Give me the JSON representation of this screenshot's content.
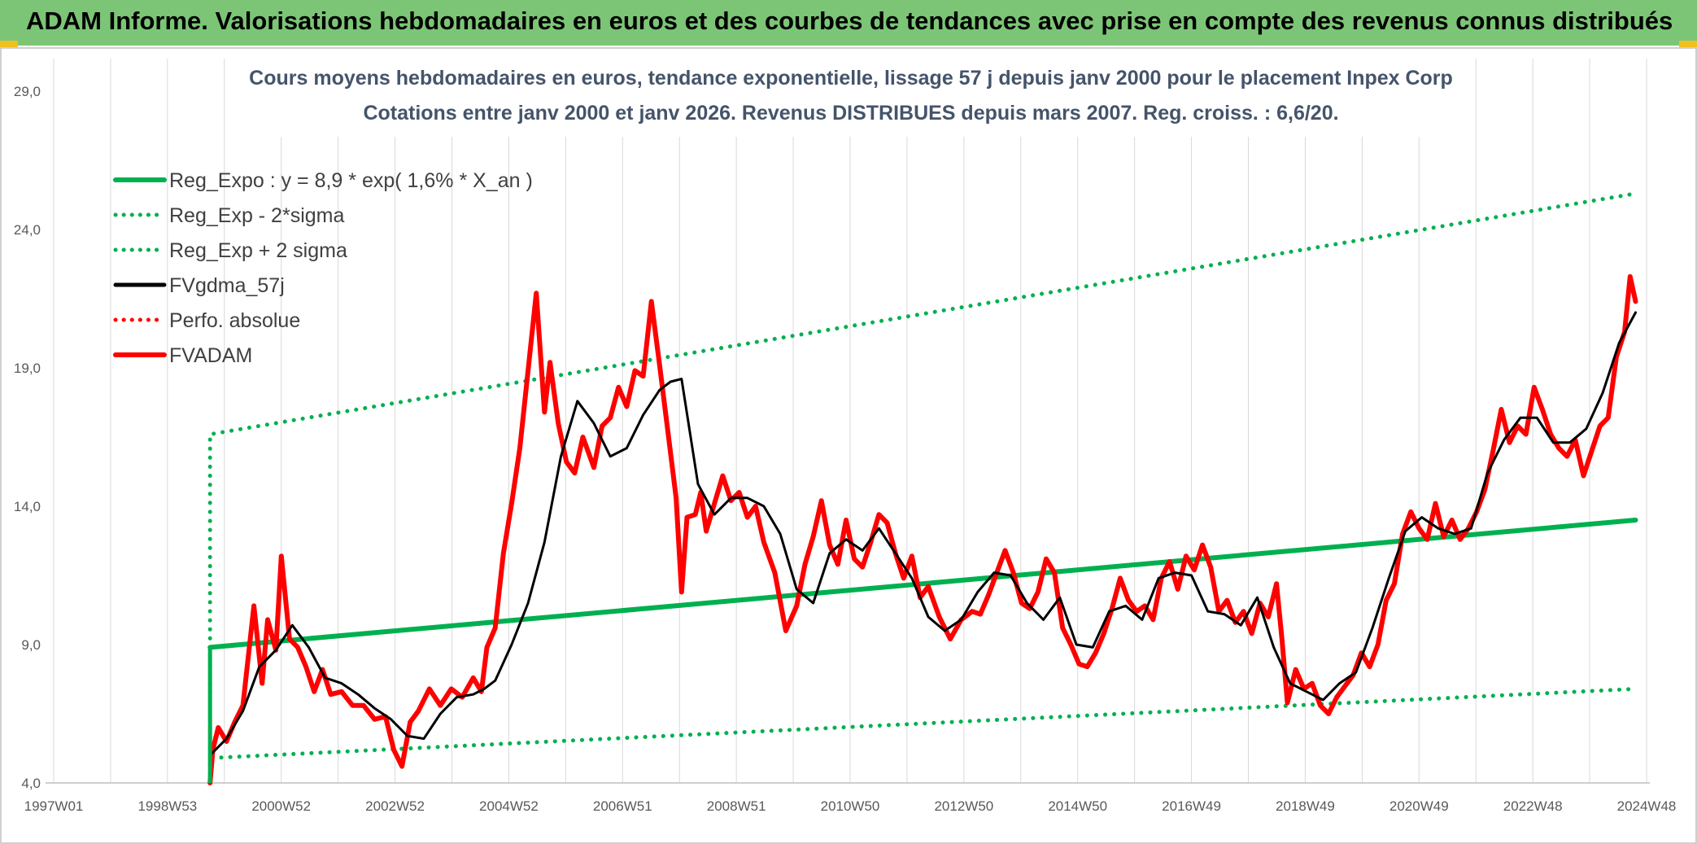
{
  "header": {
    "title": "ADAM Informe. Valorisations hebdomadaires en euros et des courbes de tendances avec prise en compte des revenus connus distribués"
  },
  "colors": {
    "header_bg": "#7cc576",
    "reg": "#00b050",
    "fvgdma": "#000000",
    "fvadam": "#ff0000",
    "perfo": "#ff0000",
    "grid": "#d9d9d9"
  },
  "chart_data": {
    "type": "line",
    "title": "Cours moyens hebdomadaires en euros, tendance exponentielle, lissage 57 j depuis janv 2000 pour le placement Inpex Corp",
    "subtitle": "Cotations entre janv 2000 et janv 2026. Revenus DISTRIBUES depuis mars 2007. Reg. croiss. : 6,6/20.",
    "xlabel": "",
    "ylabel": "",
    "xlim": [
      1997.0,
      2026.2
    ],
    "ylim": [
      4.0,
      29.0
    ],
    "y_ticks": [
      "4,0",
      "9,0",
      "14,0",
      "19,0",
      "24,0",
      "29,0"
    ],
    "x_ticks": [
      "1997W01",
      "1998W53",
      "2000W52",
      "2002W52",
      "2004W52",
      "2006W51",
      "2008W51",
      "2010W50",
      "2012W50",
      "2014W50",
      "2016W49",
      "2018W49",
      "2020W49",
      "2022W48",
      "2024W48"
    ],
    "legend_position": "top-left",
    "grid": {
      "vertical": true,
      "horizontal": false
    },
    "series": [
      {
        "name": "Reg_Expo : y = 8,9 * exp( 1,6% *  X_an )",
        "style": "solid-thick",
        "color": "#00b050",
        "x": [
          2000.0,
          2026.0
        ],
        "y": [
          8.9,
          13.5
        ]
      },
      {
        "name": "Reg_Exp - 2*sigma",
        "style": "dotted",
        "color": "#00b050",
        "x": [
          2000.0,
          2026.0
        ],
        "y": [
          4.9,
          7.4
        ]
      },
      {
        "name": "Reg_Exp + 2 sigma",
        "style": "dotted",
        "color": "#00b050",
        "x": [
          2000.0,
          2026.0
        ],
        "y": [
          16.6,
          25.3
        ]
      },
      {
        "name": "FVgdma_57j",
        "style": "solid",
        "color": "#000000",
        "x": [
          2000.0,
          2000.3,
          2000.6,
          2000.9,
          2001.2,
          2001.5,
          2001.8,
          2002.1,
          2002.4,
          2002.7,
          2003.0,
          2003.3,
          2003.6,
          2003.9,
          2004.2,
          2004.5,
          2004.8,
          2005.0,
          2005.2,
          2005.5,
          2005.8,
          2006.1,
          2006.4,
          2006.7,
          2007.0,
          2007.3,
          2007.6,
          2007.9,
          2008.2,
          2008.4,
          2008.6,
          2008.9,
          2009.2,
          2009.5,
          2009.8,
          2010.1,
          2010.4,
          2010.7,
          2011.0,
          2011.3,
          2011.6,
          2011.9,
          2012.2,
          2012.5,
          2012.8,
          2013.1,
          2013.4,
          2013.7,
          2014.0,
          2014.3,
          2014.6,
          2014.9,
          2015.2,
          2015.5,
          2015.8,
          2016.1,
          2016.4,
          2016.7,
          2017.0,
          2017.3,
          2017.6,
          2017.9,
          2018.2,
          2018.5,
          2018.8,
          2019.1,
          2019.4,
          2019.7,
          2020.0,
          2020.3,
          2020.6,
          2020.9,
          2021.2,
          2021.5,
          2021.8,
          2022.1,
          2022.4,
          2022.7,
          2023.0,
          2023.3,
          2023.6,
          2023.9,
          2024.2,
          2024.5,
          2024.8,
          2025.1,
          2025.4,
          2025.7,
          2026.0
        ],
        "y": [
          5.0,
          5.6,
          6.6,
          8.2,
          8.8,
          9.7,
          8.9,
          7.8,
          7.6,
          7.2,
          6.7,
          6.3,
          5.7,
          5.6,
          6.5,
          7.1,
          7.2,
          7.4,
          7.7,
          9.0,
          10.5,
          12.7,
          15.8,
          17.8,
          17.0,
          15.8,
          16.1,
          17.3,
          18.2,
          18.5,
          18.6,
          14.8,
          13.7,
          14.3,
          14.3,
          14.0,
          13.0,
          11.0,
          10.5,
          12.3,
          12.8,
          12.4,
          13.2,
          12.3,
          11.4,
          10.0,
          9.5,
          9.9,
          10.9,
          11.6,
          11.5,
          10.5,
          9.9,
          10.7,
          9.0,
          8.9,
          10.2,
          10.4,
          9.9,
          11.4,
          11.6,
          11.5,
          10.2,
          10.1,
          9.7,
          10.7,
          8.9,
          7.6,
          7.3,
          7.0,
          7.6,
          8.0,
          9.6,
          11.4,
          13.1,
          13.6,
          13.2,
          13.0,
          13.2,
          15.2,
          16.4,
          17.2,
          17.2,
          16.3,
          16.3,
          16.8,
          18.1,
          19.9,
          21.0
        ]
      },
      {
        "name": "Perfo. absolue",
        "style": "dotted",
        "color": "#ff0000",
        "x": [],
        "y": []
      },
      {
        "name": "FVADAM",
        "style": "solid-thick",
        "color": "#ff0000",
        "x": [
          2000.0,
          2000.05,
          2000.15,
          2000.3,
          2000.45,
          2000.6,
          2000.8,
          2000.95,
          2001.05,
          2001.2,
          2001.3,
          2001.45,
          2001.6,
          2001.75,
          2001.9,
          2002.05,
          2002.2,
          2002.4,
          2002.6,
          2002.8,
          2003.0,
          2003.2,
          2003.35,
          2003.5,
          2003.65,
          2003.8,
          2004.0,
          2004.2,
          2004.4,
          2004.6,
          2004.8,
          2004.95,
          2005.05,
          2005.2,
          2005.35,
          2005.5,
          2005.65,
          2005.8,
          2005.95,
          2006.1,
          2006.2,
          2006.35,
          2006.5,
          2006.65,
          2006.8,
          2007.0,
          2007.15,
          2007.3,
          2007.45,
          2007.6,
          2007.75,
          2007.9,
          2008.05,
          2008.2,
          2008.35,
          2008.5,
          2008.6,
          2008.7,
          2008.85,
          2008.95,
          2009.05,
          2009.2,
          2009.35,
          2009.5,
          2009.65,
          2009.8,
          2009.95,
          2010.1,
          2010.3,
          2010.5,
          2010.7,
          2010.85,
          2011.0,
          2011.15,
          2011.3,
          2011.45,
          2011.6,
          2011.75,
          2011.9,
          2012.05,
          2012.2,
          2012.35,
          2012.5,
          2012.65,
          2012.8,
          2012.95,
          2013.1,
          2013.3,
          2013.5,
          2013.7,
          2013.9,
          2014.05,
          2014.2,
          2014.35,
          2014.5,
          2014.65,
          2014.8,
          2014.95,
          2015.1,
          2015.25,
          2015.4,
          2015.55,
          2015.7,
          2015.85,
          2016.0,
          2016.15,
          2016.3,
          2016.45,
          2016.6,
          2016.75,
          2016.9,
          2017.05,
          2017.2,
          2017.35,
          2017.5,
          2017.65,
          2017.8,
          2017.95,
          2018.1,
          2018.25,
          2018.4,
          2018.55,
          2018.7,
          2018.85,
          2019.0,
          2019.15,
          2019.3,
          2019.45,
          2019.55,
          2019.65,
          2019.8,
          2019.95,
          2020.1,
          2020.25,
          2020.4,
          2020.55,
          2020.7,
          2020.85,
          2021.0,
          2021.15,
          2021.3,
          2021.45,
          2021.6,
          2021.75,
          2021.9,
          2022.05,
          2022.2,
          2022.35,
          2022.5,
          2022.65,
          2022.8,
          2022.95,
          2023.1,
          2023.25,
          2023.4,
          2023.55,
          2023.7,
          2023.85,
          2024.0,
          2024.15,
          2024.3,
          2024.45,
          2024.6,
          2024.75,
          2024.9,
          2025.05,
          2025.2,
          2025.35,
          2025.5,
          2025.65,
          2025.8,
          2025.9,
          2026.0
        ],
        "y": [
          4.0,
          5.2,
          6.0,
          5.5,
          6.2,
          6.8,
          10.4,
          7.6,
          9.9,
          8.8,
          12.2,
          9.2,
          8.9,
          8.2,
          7.3,
          8.1,
          7.2,
          7.3,
          6.8,
          6.8,
          6.3,
          6.4,
          5.2,
          4.6,
          6.2,
          6.6,
          7.4,
          6.8,
          7.4,
          7.1,
          7.8,
          7.3,
          8.9,
          9.6,
          12.3,
          14.1,
          16.1,
          18.9,
          21.7,
          17.4,
          19.2,
          17.0,
          15.6,
          15.2,
          16.5,
          15.4,
          16.9,
          17.2,
          18.3,
          17.6,
          18.9,
          18.7,
          21.4,
          19.1,
          16.7,
          14.3,
          10.9,
          13.6,
          13.7,
          14.5,
          13.1,
          14.1,
          15.1,
          14.2,
          14.5,
          13.6,
          14.0,
          12.7,
          11.6,
          9.5,
          10.4,
          11.9,
          12.9,
          14.2,
          12.6,
          11.9,
          13.5,
          12.1,
          11.8,
          12.7,
          13.7,
          13.4,
          12.3,
          11.4,
          12.2,
          10.7,
          11.1,
          10.0,
          9.2,
          9.9,
          10.2,
          10.1,
          10.8,
          11.6,
          12.4,
          11.6,
          10.5,
          10.3,
          10.9,
          12.1,
          11.6,
          9.6,
          9.0,
          8.3,
          8.2,
          8.7,
          9.4,
          10.3,
          11.4,
          10.6,
          10.2,
          10.4,
          9.9,
          11.4,
          12.0,
          11.0,
          12.2,
          11.7,
          12.6,
          11.8,
          10.2,
          10.6,
          9.8,
          10.2,
          9.4,
          10.5,
          10.0,
          11.2,
          9.2,
          6.9,
          8.1,
          7.4,
          7.6,
          6.8,
          6.5,
          7.1,
          7.5,
          7.9,
          8.7,
          8.2,
          9.0,
          10.6,
          11.2,
          13.0,
          13.8,
          13.2,
          12.8,
          14.1,
          12.9,
          13.5,
          12.8,
          13.2,
          13.8,
          14.6,
          16.0,
          17.5,
          16.3,
          16.9,
          16.6,
          18.3,
          17.5,
          16.6,
          16.1,
          15.8,
          16.4,
          15.1,
          16.0,
          16.9,
          17.2,
          19.4,
          20.3,
          22.3,
          21.4
        ]
      }
    ]
  }
}
